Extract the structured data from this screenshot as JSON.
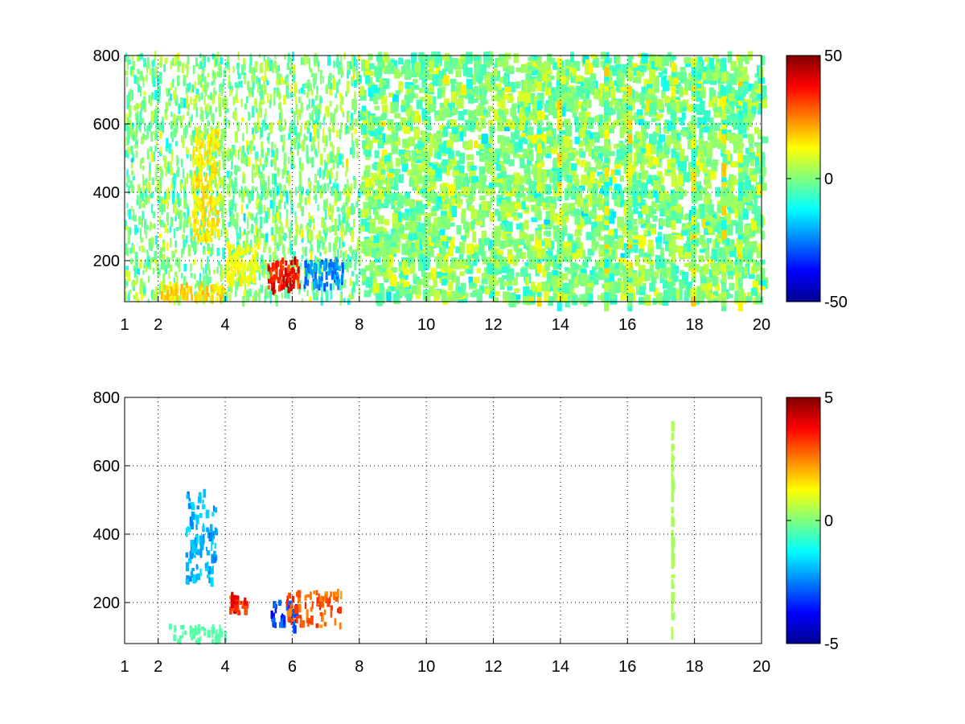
{
  "chart_data": [
    {
      "type": "heatmap",
      "title": "",
      "xlabel": "",
      "ylabel": "",
      "xlim": [
        1,
        20
      ],
      "ylim": [
        80,
        800
      ],
      "xticks": [
        1,
        2,
        4,
        6,
        8,
        10,
        12,
        14,
        16,
        18,
        20
      ],
      "yticks": [
        200,
        400,
        600,
        800
      ],
      "xtick_labels": [
        "1",
        "2",
        "4",
        "6",
        "8",
        "10",
        "12",
        "14",
        "16",
        "18",
        "20"
      ],
      "ytick_labels": [
        "200",
        "400",
        "600",
        "800"
      ],
      "grid": true,
      "colormap": "jet",
      "colorbar": {
        "limits": [
          -50,
          50
        ],
        "ticks": [
          -50,
          0,
          50
        ],
        "tick_labels": [
          "-50",
          "0",
          "50"
        ]
      },
      "features": [
        {
          "x": [
            2.0,
            4.0
          ],
          "y": [
            85,
            130
          ],
          "value": 20
        },
        {
          "x": [
            3.0,
            3.8
          ],
          "y": [
            260,
            580
          ],
          "value": 18
        },
        {
          "x": [
            4.0,
            5.0
          ],
          "y": [
            130,
            250
          ],
          "value": 15
        },
        {
          "x": [
            5.2,
            6.2
          ],
          "y": [
            110,
            200
          ],
          "value": 45
        },
        {
          "x": [
            6.3,
            7.5
          ],
          "y": [
            120,
            200
          ],
          "value": -30
        }
      ]
    },
    {
      "type": "heatmap",
      "title": "",
      "xlabel": "",
      "ylabel": "",
      "xlim": [
        1,
        20
      ],
      "ylim": [
        80,
        800
      ],
      "xticks": [
        1,
        2,
        4,
        6,
        8,
        10,
        12,
        14,
        16,
        18,
        20
      ],
      "yticks": [
        200,
        400,
        600,
        800
      ],
      "xtick_labels": [
        "1",
        "2",
        "4",
        "6",
        "8",
        "10",
        "12",
        "14",
        "16",
        "18",
        "20"
      ],
      "ytick_labels": [
        "200",
        "400",
        "600",
        "800"
      ],
      "grid": true,
      "colormap": "jet",
      "colorbar": {
        "limits": [
          -5,
          5
        ],
        "ticks": [
          -5,
          0,
          5
        ],
        "tick_labels": [
          "-5",
          "0",
          "5"
        ]
      },
      "features": [
        {
          "x": [
            2.3,
            4.0
          ],
          "y": [
            85,
            130
          ],
          "value": -0.5
        },
        {
          "x": [
            2.8,
            3.7
          ],
          "y": [
            260,
            520
          ],
          "value": -2.5
        },
        {
          "x": [
            4.1,
            4.6
          ],
          "y": [
            170,
            220
          ],
          "value": 4.5
        },
        {
          "x": [
            5.3,
            6.1
          ],
          "y": [
            120,
            200
          ],
          "value": -4.0
        },
        {
          "x": [
            5.8,
            7.5
          ],
          "y": [
            130,
            230
          ],
          "value": 3.5
        },
        {
          "x": [
            17.3,
            17.3
          ],
          "y": [
            100,
            770
          ],
          "value": 0.5
        }
      ]
    }
  ]
}
